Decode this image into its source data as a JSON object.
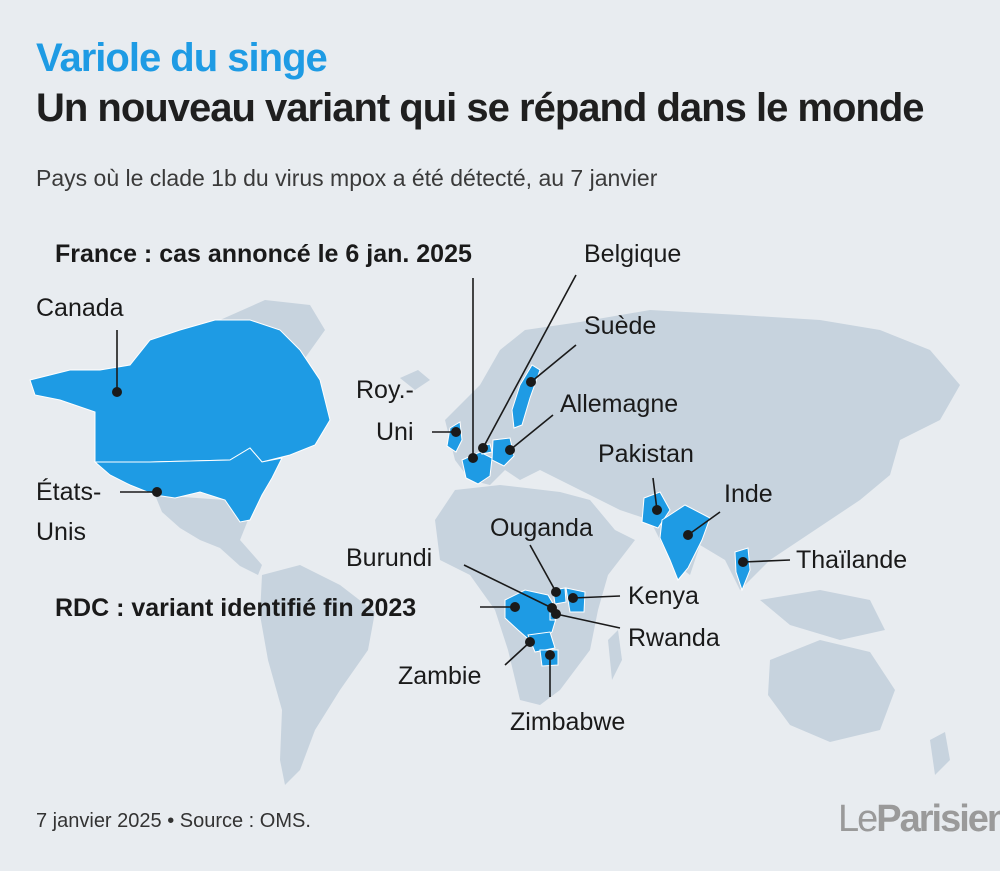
{
  "header": {
    "kicker": "Variole du singe",
    "headline": "Un nouveau variant qui se répand dans le monde",
    "subtitle": "Pays où le clade 1b du virus mpox a été détecté, au 7 janvier"
  },
  "colors": {
    "background": "#e8ecf0",
    "land": "#c7d3de",
    "highlight": "#1e9be4",
    "kicker": "#1e9be4"
  },
  "labels": {
    "france": "France : cas annoncé le 6 jan. 2025",
    "belgique": "Belgique",
    "suede": "Suède",
    "canada": "Canada",
    "roy_uni_1": "Roy.-",
    "roy_uni_2": "Uni",
    "allemagne": "Allemagne",
    "pakistan": "Pakistan",
    "inde": "Inde",
    "etats_unis_1": "États-",
    "etats_unis_2": "Unis",
    "ouganda": "Ouganda",
    "thailande": "Thaïlande",
    "burundi": "Burundi",
    "rdc": "RDC : variant identifié fin 2023",
    "kenya": "Kenya",
    "rwanda": "Rwanda",
    "zambie": "Zambie",
    "zimbabwe": "Zimbabwe"
  },
  "footer": {
    "text": "7 janvier 2025 • Source : OMS.",
    "logo_le": "Le",
    "logo_parisien": "Parisien"
  }
}
